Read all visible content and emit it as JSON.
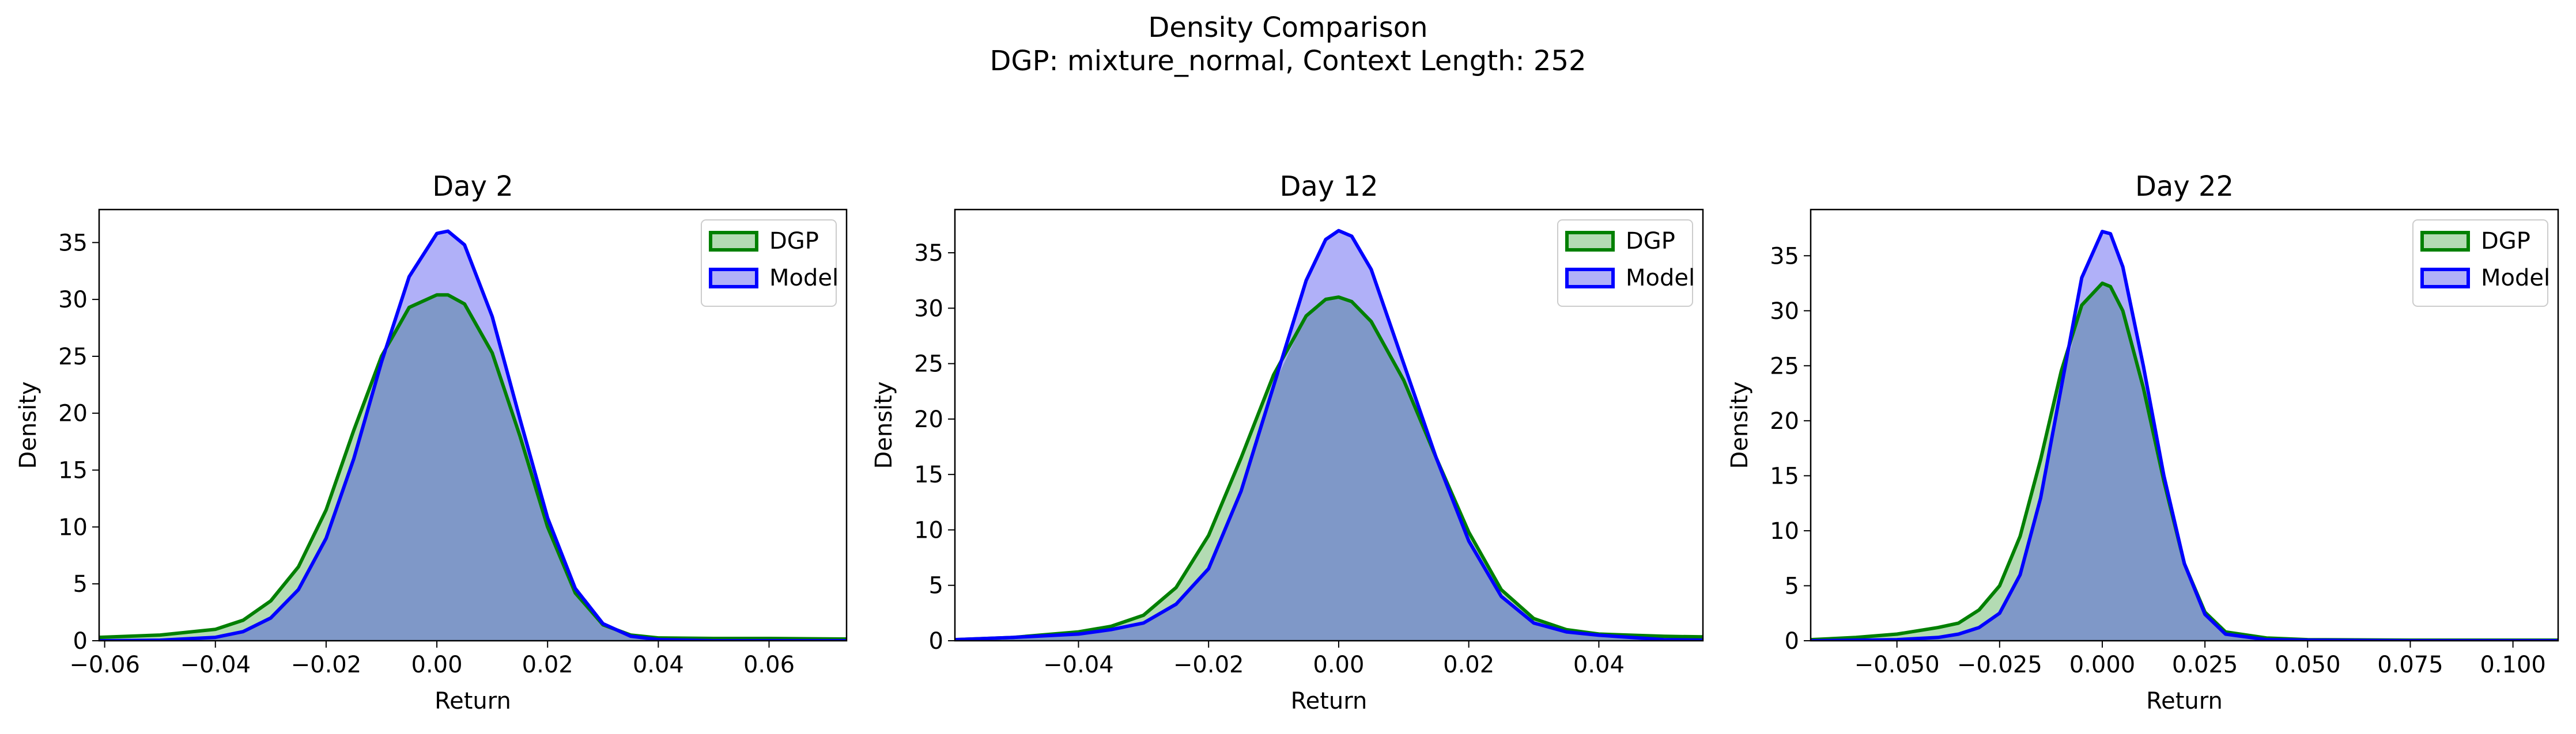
{
  "figure": {
    "title_line1": "Density Comparison",
    "title_line2": "DGP: mixture_normal, Context Length: 252"
  },
  "colors": {
    "dgp_line": "#008000",
    "dgp_fill": "#b3dbb3",
    "model_line": "#0000ff",
    "model_fill": "#b0b0f8",
    "overlap_fill": "#7f98c8"
  },
  "chart_data": [
    {
      "type": "area",
      "title": "Day 2",
      "xlabel": "Return",
      "ylabel": "Density",
      "xlim": [
        -0.061,
        0.074
      ],
      "ylim": [
        0,
        37.9
      ],
      "xticks": [
        -0.06,
        -0.04,
        -0.02,
        0.0,
        0.02,
        0.04,
        0.06
      ],
      "xtick_labels": [
        "−0.06",
        "−0.04",
        "−0.02",
        "0.00",
        "0.02",
        "0.04",
        "0.06"
      ],
      "yticks": [
        0,
        5,
        10,
        15,
        20,
        25,
        30,
        35
      ],
      "legend_position": "upper right",
      "series": [
        {
          "name": "DGP",
          "x": [
            -0.061,
            -0.05,
            -0.04,
            -0.035,
            -0.03,
            -0.025,
            -0.02,
            -0.015,
            -0.01,
            -0.005,
            0.0,
            0.002,
            0.005,
            0.01,
            0.015,
            0.02,
            0.025,
            0.03,
            0.035,
            0.04,
            0.05,
            0.06,
            0.074
          ],
          "values": [
            0.3,
            0.5,
            1.0,
            1.8,
            3.5,
            6.5,
            11.5,
            18.5,
            25.0,
            29.3,
            30.4,
            30.4,
            29.6,
            25.3,
            18.0,
            10.0,
            4.2,
            1.4,
            0.5,
            0.25,
            0.2,
            0.2,
            0.15
          ]
        },
        {
          "name": "Model",
          "x": [
            -0.061,
            -0.05,
            -0.04,
            -0.035,
            -0.03,
            -0.025,
            -0.02,
            -0.015,
            -0.01,
            -0.005,
            0.0,
            0.002,
            0.005,
            0.01,
            0.015,
            0.02,
            0.025,
            0.03,
            0.035,
            0.04,
            0.05,
            0.06,
            0.074
          ],
          "values": [
            0.0,
            0.05,
            0.3,
            0.8,
            2.0,
            4.5,
            9.0,
            16.0,
            24.5,
            32.0,
            35.8,
            36.0,
            34.8,
            28.5,
            19.5,
            10.8,
            4.6,
            1.5,
            0.4,
            0.1,
            0.0,
            0.0,
            0.0
          ]
        }
      ]
    },
    {
      "type": "area",
      "title": "Day 12",
      "xlabel": "Return",
      "ylabel": "Density",
      "xlim": [
        -0.059,
        0.056
      ],
      "ylim": [
        0,
        38.9
      ],
      "xticks": [
        -0.04,
        -0.02,
        0.0,
        0.02,
        0.04
      ],
      "xtick_labels": [
        "−0.04",
        "−0.02",
        "0.00",
        "0.02",
        "0.04"
      ],
      "yticks": [
        0,
        5,
        10,
        15,
        20,
        25,
        30,
        35
      ],
      "legend_position": "upper right",
      "series": [
        {
          "name": "DGP",
          "x": [
            -0.059,
            -0.05,
            -0.04,
            -0.035,
            -0.03,
            -0.025,
            -0.02,
            -0.015,
            -0.01,
            -0.005,
            -0.002,
            0.0,
            0.002,
            0.005,
            0.01,
            0.015,
            0.02,
            0.025,
            0.03,
            0.035,
            0.04,
            0.05,
            0.056
          ],
          "values": [
            0.1,
            0.3,
            0.8,
            1.3,
            2.3,
            4.8,
            9.5,
            16.5,
            24.0,
            29.3,
            30.8,
            31.0,
            30.6,
            28.8,
            23.5,
            16.5,
            9.8,
            4.6,
            2.0,
            1.0,
            0.6,
            0.4,
            0.35
          ]
        },
        {
          "name": "Model",
          "x": [
            -0.059,
            -0.05,
            -0.04,
            -0.035,
            -0.03,
            -0.025,
            -0.02,
            -0.015,
            -0.01,
            -0.005,
            -0.002,
            0.0,
            0.002,
            0.005,
            0.01,
            0.015,
            0.02,
            0.025,
            0.03,
            0.035,
            0.04,
            0.05,
            0.056
          ],
          "values": [
            0.1,
            0.3,
            0.6,
            1.0,
            1.6,
            3.3,
            6.5,
            13.5,
            23.0,
            32.5,
            36.2,
            37.0,
            36.5,
            33.5,
            25.0,
            16.5,
            9.0,
            4.0,
            1.6,
            0.8,
            0.5,
            0.1,
            0.05
          ]
        }
      ]
    },
    {
      "type": "area",
      "title": "Day 22",
      "xlabel": "Return",
      "ylabel": "Density",
      "xlim": [
        -0.071,
        0.111
      ],
      "ylim": [
        0,
        39.2
      ],
      "xticks": [
        -0.05,
        -0.025,
        0.0,
        0.025,
        0.05,
        0.075,
        0.1
      ],
      "xtick_labels": [
        "−0.050",
        "−0.025",
        "0.000",
        "0.025",
        "0.050",
        "0.075",
        "0.100"
      ],
      "yticks": [
        0,
        5,
        10,
        15,
        20,
        25,
        30,
        35
      ],
      "legend_position": "upper right",
      "series": [
        {
          "name": "DGP",
          "x": [
            -0.071,
            -0.06,
            -0.05,
            -0.04,
            -0.035,
            -0.03,
            -0.025,
            -0.02,
            -0.015,
            -0.01,
            -0.005,
            0.0,
            0.002,
            0.005,
            0.01,
            0.015,
            0.02,
            0.025,
            0.03,
            0.04,
            0.05,
            0.075,
            0.1,
            0.111
          ],
          "values": [
            0.1,
            0.3,
            0.6,
            1.2,
            1.6,
            2.8,
            5.0,
            9.5,
            16.5,
            24.5,
            30.5,
            32.5,
            32.2,
            30.0,
            23.0,
            14.5,
            7.0,
            2.6,
            0.8,
            0.25,
            0.1,
            0.05,
            0.05,
            0.05
          ]
        },
        {
          "name": "Model",
          "x": [
            -0.071,
            -0.06,
            -0.05,
            -0.04,
            -0.035,
            -0.03,
            -0.025,
            -0.02,
            -0.015,
            -0.01,
            -0.005,
            0.0,
            0.002,
            0.005,
            0.01,
            0.015,
            0.02,
            0.025,
            0.03,
            0.04,
            0.05,
            0.075,
            0.1,
            0.111
          ],
          "values": [
            0.0,
            0.05,
            0.1,
            0.3,
            0.6,
            1.2,
            2.5,
            6.0,
            13.0,
            23.0,
            33.0,
            37.2,
            37.0,
            34.0,
            25.0,
            15.0,
            7.0,
            2.4,
            0.6,
            0.1,
            0.05,
            0.0,
            0.0,
            0.0
          ]
        }
      ]
    }
  ]
}
